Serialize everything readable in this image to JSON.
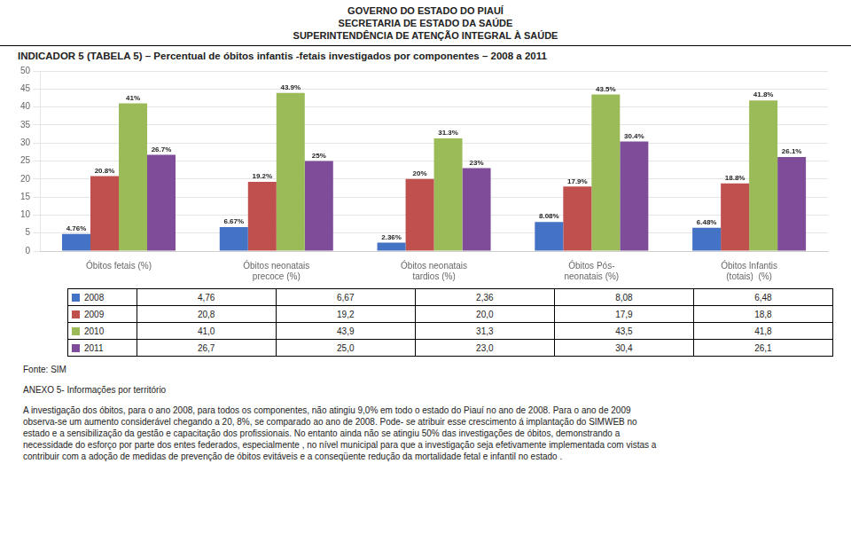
{
  "chart_data": {
    "type": "bar",
    "header": [
      "GOVERNO DO ESTADO DO PIAUÍ",
      "SECRETARIA DE ESTADO DA SAÚDE",
      "SUPERINTENDÊNCIA DE ATENÇÃO INTEGRAL À SAÚDE"
    ],
    "title": "INDICADOR 5 (TABELA 5) – Percentual  de óbitos infantis -fetais investigados por componentes – 2008 a 2011",
    "categories": [
      "Óbitos fetais (%)",
      "Óbitos neonatais\nprecoce (%)",
      "Óbitos neonatais\ntardios (%)",
      "Óbitos Pós-\nneonatais (%)",
      "Óbitos Infantis\n(totais)  (%)"
    ],
    "series": [
      {
        "name": "2008",
        "color": "#4472C4",
        "values": [
          4.76,
          6.67,
          2.36,
          8.08,
          6.48
        ],
        "value_labels": [
          "4.76%",
          "6.67%",
          "2.36%",
          "8.08%",
          "6.48%"
        ]
      },
      {
        "name": "2009",
        "color": "#C0504D",
        "values": [
          20.8,
          19.2,
          20.0,
          17.9,
          18.8
        ],
        "value_labels": [
          "20.8%",
          "19.2%",
          "20%",
          "17.9%",
          "18.8%"
        ]
      },
      {
        "name": "2010",
        "color": "#9BBB59",
        "values": [
          41.0,
          43.9,
          31.3,
          43.5,
          41.8
        ],
        "value_labels": [
          "41%",
          "43.9%",
          "31.3%",
          "43.5%",
          "41.8%"
        ]
      },
      {
        "name": "2011",
        "color": "#7F4C99",
        "values": [
          26.7,
          25.0,
          23.0,
          30.4,
          26.1
        ],
        "value_labels": [
          "26.7%",
          "25%",
          "23%",
          "30.4%",
          "26.1%"
        ]
      }
    ],
    "ylim": [
      0,
      50
    ],
    "yticks": [
      0,
      5,
      10,
      15,
      20,
      25,
      30,
      35,
      40,
      45,
      50
    ],
    "grid": true,
    "data_labels": true,
    "table": [
      [
        "2008",
        "4,76",
        "6,67",
        "2,36",
        "8,08",
        "6,48"
      ],
      [
        "2009",
        "20,8",
        "19,2",
        "20,0",
        "17,9",
        "18,8"
      ],
      [
        "2010",
        "41,0",
        "43,9",
        "31,3",
        "43,5",
        "41,8"
      ],
      [
        "2011",
        "26,7",
        "25,0",
        "23,0",
        "30,4",
        "26,1"
      ]
    ],
    "footer": [
      "Fonte: SIM",
      "ANEXO 5- Informações por território",
      "A investigação dos óbitos, para o ano 2008, para todos os componentes, não atingiu 9,0% em todo o estado do Piauí no ano de 2008. Para o ano de 2009",
      "observa-se um aumento considerável chegando a 20, 8%,  se comparado ao ano de 2008. Pode- se atribuir esse crescimento á implantação do SIMWEB no",
      "estado e  a sensibilização da gestão e capacitação dos profissionais. No entanto ainda não se atingiu 50% das investigações  de óbitos, demonstrando a",
      "necessidade do esforço por parte dos entes federados, especialmente , no nível municipal para que a investigação seja efetivamente implementada  com vistas a",
      "contribuir com a adoção  de medidas de prevenção de óbitos evitáveis e a conseqüente redução da mortalidade fetal e infantil no estado ."
    ]
  }
}
